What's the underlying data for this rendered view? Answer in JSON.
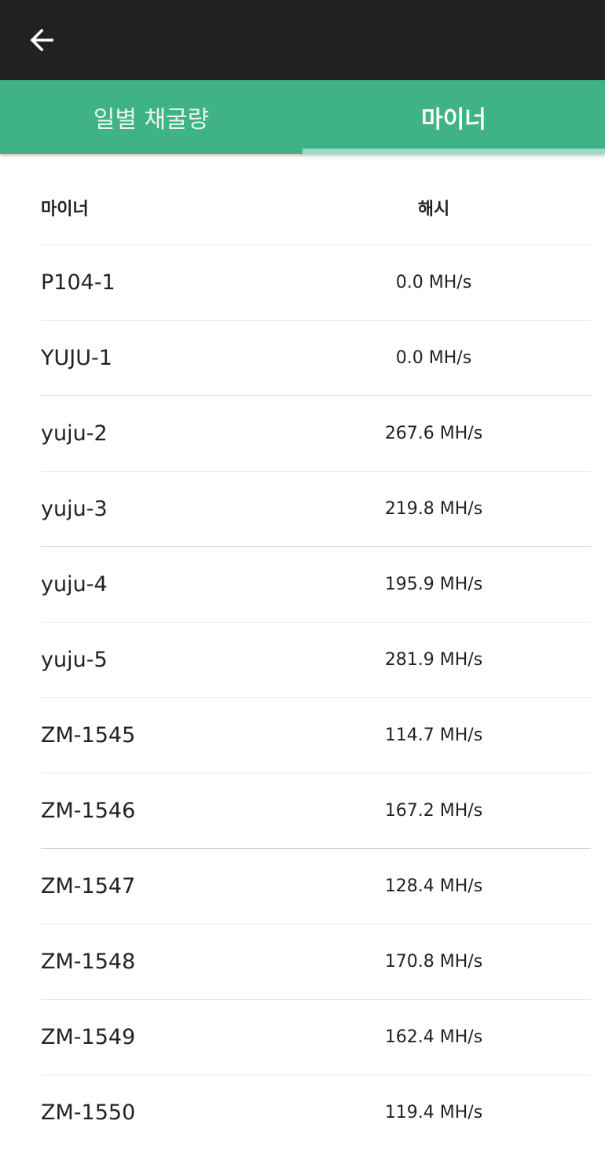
{
  "tabs": {
    "daily_label": "일별 채굴량",
    "miner_label": "마이너"
  },
  "table": {
    "header": {
      "miner": "마이너",
      "hash": "해시"
    },
    "rows": [
      {
        "name": "P104-1",
        "hash": "0.0 MH/s"
      },
      {
        "name": "YUJU-1",
        "hash": "0.0 MH/s"
      },
      {
        "name": "yuju-2",
        "hash": "267.6 MH/s"
      },
      {
        "name": "yuju-3",
        "hash": "219.8 MH/s"
      },
      {
        "name": "yuju-4",
        "hash": "195.9 MH/s"
      },
      {
        "name": "yuju-5",
        "hash": "281.9 MH/s"
      },
      {
        "name": "ZM-1545",
        "hash": "114.7 MH/s"
      },
      {
        "name": "ZM-1546",
        "hash": "167.2 MH/s"
      },
      {
        "name": "ZM-1547",
        "hash": "128.4 MH/s"
      },
      {
        "name": "ZM-1548",
        "hash": "170.8 MH/s"
      },
      {
        "name": "ZM-1549",
        "hash": "162.4 MH/s"
      },
      {
        "name": "ZM-1550",
        "hash": "119.4 MH/s"
      }
    ]
  },
  "icons": {
    "back": "arrow-left"
  },
  "colors": {
    "appbar": "#212121",
    "tab_bar": "#3fb286",
    "tab_indicator": "#9bddc4"
  }
}
